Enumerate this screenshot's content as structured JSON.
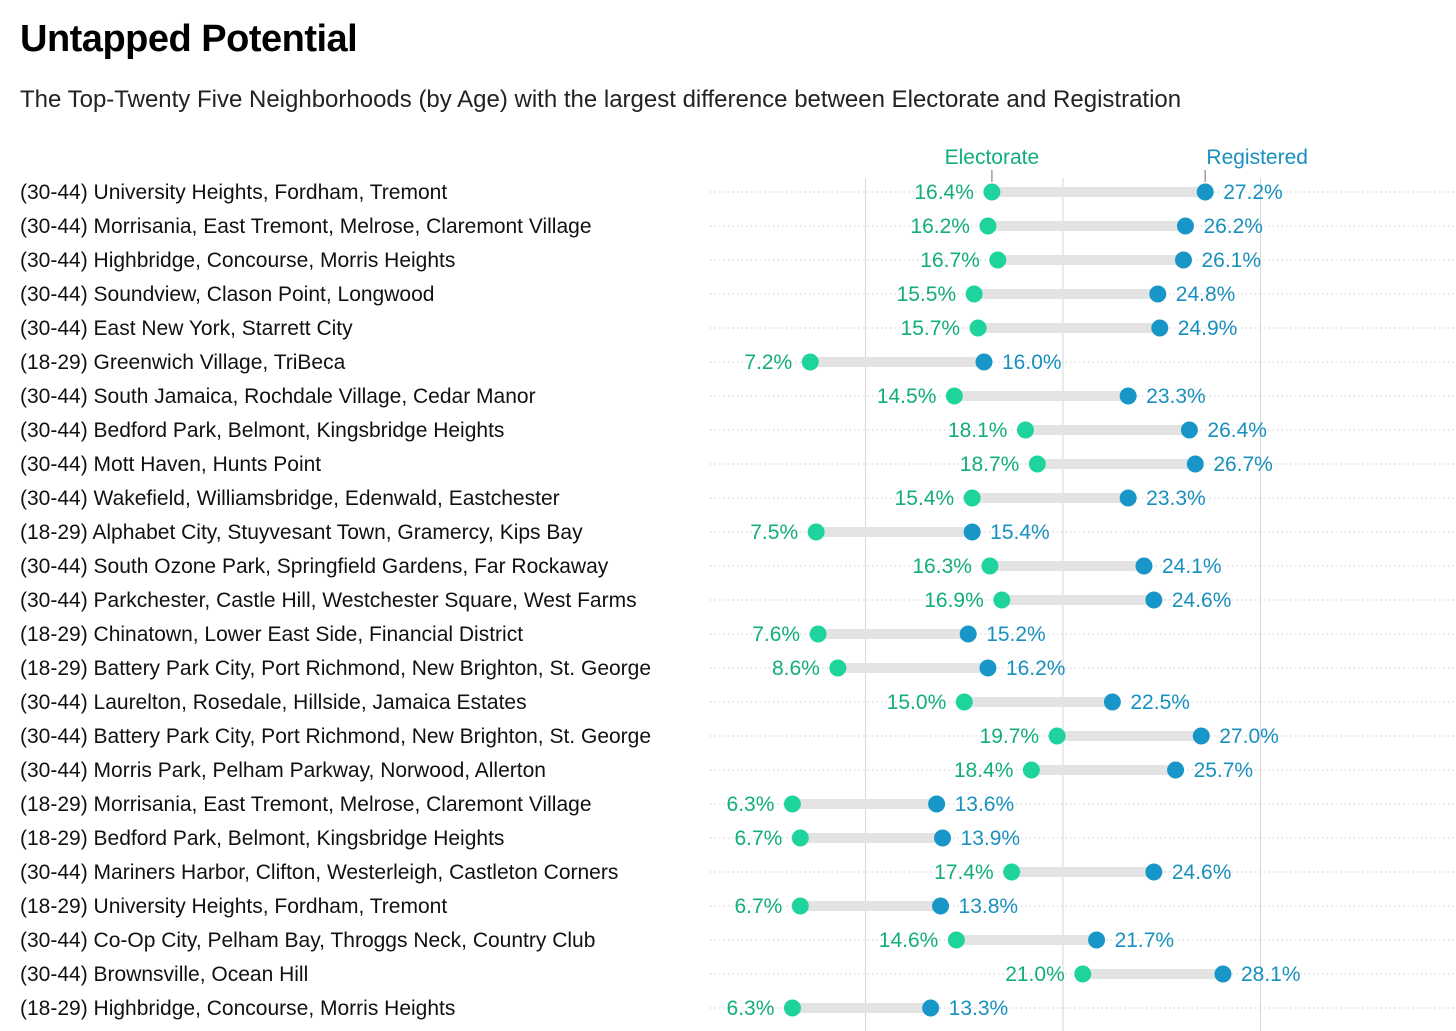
{
  "header": {
    "title": "Untapped Potential",
    "subtitle": "The Top-Twenty Five Neighborhoods (by Age) with the largest difference between Electorate and Registration"
  },
  "colors": {
    "electorate": "#1fd49c",
    "registered": "#1996c8",
    "electorate_text": "#12ad7e",
    "registered_text": "#1890bf",
    "bar": "#e3e3e3",
    "grid": "#d6d6d6"
  },
  "chart_data": {
    "type": "dumbbell",
    "legend": {
      "electorate": "Electorate",
      "registered": "Registered"
    },
    "value_suffix": "%",
    "categories": [
      "(30-44) University Heights, Fordham, Tremont",
      "(30-44) Morrisania, East Tremont, Melrose, Claremont Village",
      "(30-44) Highbridge, Concourse, Morris Heights",
      "(30-44) Soundview, Clason Point, Longwood",
      "(30-44) East New York, Starrett City",
      "(18-29) Greenwich Village, TriBeca",
      "(30-44) South Jamaica, Rochdale Village, Cedar Manor",
      "(30-44) Bedford Park, Belmont, Kingsbridge Heights",
      "(30-44) Mott Haven, Hunts Point",
      "(30-44) Wakefield, Williamsbridge, Edenwald, Eastchester",
      "(18-29) Alphabet City, Stuyvesant Town, Gramercy, Kips Bay",
      "(30-44) South Ozone Park, Springfield Gardens, Far Rockaway",
      "(30-44) Parkchester, Castle Hill, Westchester Square, West Farms",
      "(18-29) Chinatown, Lower East Side, Financial District",
      "(18-29) Battery Park City, Port Richmond, New Brighton, St. George",
      "(30-44) Laurelton, Rosedale, Hillside, Jamaica Estates",
      "(30-44) Battery Park City, Port Richmond, New Brighton, St. George",
      "(30-44) Morris Park, Pelham Parkway, Norwood, Allerton",
      "(18-29) Morrisania, East Tremont, Melrose, Claremont Village",
      "(18-29) Bedford Park, Belmont, Kingsbridge Heights",
      "(30-44) Mariners Harbor, Clifton, Westerleigh, Castleton Corners",
      "(18-29) University Heights, Fordham, Tremont",
      "(30-44) Co-Op City, Pelham Bay, Throggs Neck, Country Club",
      "(30-44) Brownsville, Ocean Hill",
      "(18-29) Highbridge, Concourse, Morris Heights"
    ],
    "series": [
      {
        "name": "Electorate",
        "values": [
          16.4,
          16.2,
          16.7,
          15.5,
          15.7,
          7.2,
          14.5,
          18.1,
          18.7,
          15.4,
          7.5,
          16.3,
          16.9,
          7.6,
          8.6,
          15.0,
          19.7,
          18.4,
          6.3,
          6.7,
          17.4,
          6.7,
          14.6,
          21.0,
          6.3
        ]
      },
      {
        "name": "Registered",
        "values": [
          27.2,
          26.2,
          26.1,
          24.8,
          24.9,
          16.0,
          23.3,
          26.4,
          26.7,
          23.3,
          15.4,
          24.1,
          24.6,
          15.2,
          16.2,
          22.5,
          27.0,
          25.7,
          13.6,
          13.9,
          24.6,
          13.8,
          21.7,
          28.1,
          13.3
        ]
      }
    ],
    "x_gridlines": [
      10,
      20,
      30
    ],
    "xlim": [
      2,
      31
    ],
    "grid": true,
    "legend_position": "top, above first row"
  }
}
